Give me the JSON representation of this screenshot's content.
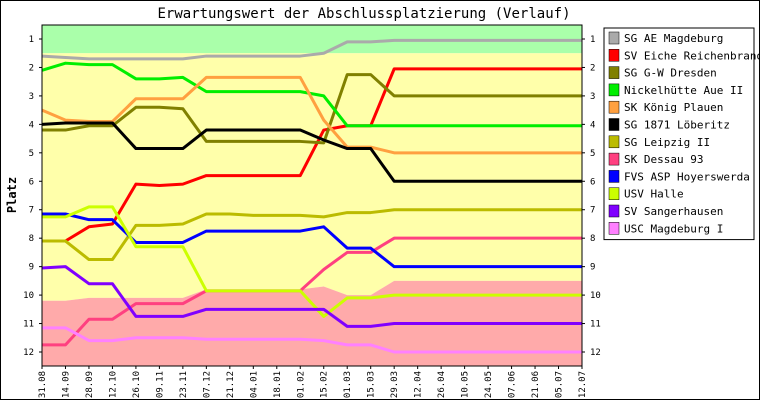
{
  "chart_data": {
    "type": "line",
    "title": "Erwartungswert der Abschlussplatzierung (Verlauf)",
    "ylabel": "Platz",
    "xlabel": "",
    "ylim": [
      1,
      12
    ],
    "y_inverted": true,
    "grid": false,
    "legend_position": "right",
    "x": [
      "31.08",
      "14.09",
      "28.09",
      "12.10",
      "26.10",
      "09.11",
      "23.11",
      "07.12",
      "21.12",
      "04.01",
      "18.01",
      "01.02",
      "15.02",
      "01.03",
      "15.03",
      "29.03",
      "12.04",
      "26.04",
      "10.05",
      "24.05",
      "07.06",
      "21.06",
      "05.07",
      "12.07"
    ],
    "y_ticks": [
      1,
      2,
      3,
      4,
      5,
      6,
      7,
      8,
      9,
      10,
      11,
      12
    ],
    "bands": [
      {
        "name": "green",
        "color": "#aaffaa",
        "from": [
          0.5,
          0.5,
          0.5,
          0.5,
          0.5,
          0.5,
          0.5,
          0.5,
          0.5,
          0.5,
          0.5,
          0.5,
          0.5,
          0.5,
          0.5,
          0.5,
          0.5,
          0.5,
          0.5,
          0.5,
          0.5,
          0.5,
          0.5,
          0.5
        ],
        "to": [
          1.5,
          1.5,
          1.5,
          1.5,
          1.5,
          1.5,
          1.5,
          1.5,
          1.5,
          1.5,
          1.5,
          1.5,
          1.5,
          1.5,
          1.5,
          1.5,
          1.5,
          1.5,
          1.5,
          1.5,
          1.5,
          1.5,
          1.5,
          1.5
        ]
      },
      {
        "name": "yellow",
        "color": "#ffffaa",
        "from": [
          1.5,
          1.5,
          1.5,
          1.5,
          1.5,
          1.5,
          1.5,
          1.5,
          1.5,
          1.5,
          1.5,
          1.5,
          1.5,
          1.5,
          1.5,
          1.5,
          1.5,
          1.5,
          1.5,
          1.5,
          1.5,
          1.5,
          1.5,
          1.5
        ],
        "to": [
          10.2,
          10.2,
          10.1,
          10.1,
          10.1,
          10.1,
          10.1,
          9.8,
          9.8,
          9.8,
          9.8,
          9.8,
          9.7,
          10.0,
          10.0,
          9.5,
          9.5,
          9.5,
          9.5,
          9.5,
          9.5,
          9.5,
          9.5,
          9.5
        ]
      },
      {
        "name": "red",
        "color": "#ffaaaa",
        "from": [
          10.2,
          10.2,
          10.1,
          10.1,
          10.1,
          10.1,
          10.1,
          9.8,
          9.8,
          9.8,
          9.8,
          9.8,
          9.7,
          10.0,
          10.0,
          9.5,
          9.5,
          9.5,
          9.5,
          9.5,
          9.5,
          9.5,
          9.5,
          9.5
        ],
        "to": [
          12.5,
          12.5,
          12.5,
          12.5,
          12.5,
          12.5,
          12.5,
          12.5,
          12.5,
          12.5,
          12.5,
          12.5,
          12.5,
          12.5,
          12.5,
          12.5,
          12.5,
          12.5,
          12.5,
          12.5,
          12.5,
          12.5,
          12.5,
          12.5
        ]
      }
    ],
    "series": [
      {
        "name": "SG AE Magdeburg",
        "color": "#aaaaaa",
        "values": [
          1.6,
          1.65,
          1.7,
          1.7,
          1.7,
          1.7,
          1.7,
          1.6,
          1.6,
          1.6,
          1.6,
          1.6,
          1.5,
          1.1,
          1.1,
          1.05,
          1.05,
          1.05,
          1.05,
          1.05,
          1.05,
          1.05,
          1.05,
          1.05
        ]
      },
      {
        "name": "SV Eiche Reichenbrand",
        "color": "#ff0000",
        "values": [
          8.1,
          8.1,
          7.6,
          7.5,
          6.1,
          6.15,
          6.1,
          5.8,
          5.8,
          5.8,
          5.8,
          5.8,
          4.2,
          4.05,
          4.05,
          2.05,
          2.05,
          2.05,
          2.05,
          2.05,
          2.05,
          2.05,
          2.05,
          2.05
        ]
      },
      {
        "name": "SG G-W Dresden",
        "color": "#808000",
        "values": [
          4.2,
          4.2,
          4.05,
          4.05,
          3.4,
          3.4,
          3.45,
          4.6,
          4.6,
          4.6,
          4.6,
          4.6,
          4.65,
          2.25,
          2.25,
          3.0,
          3.0,
          3.0,
          3.0,
          3.0,
          3.0,
          3.0,
          3.0,
          3.0
        ]
      },
      {
        "name": "Nickelhütte Aue II",
        "color": "#00ee00",
        "values": [
          2.1,
          1.85,
          1.9,
          1.9,
          2.4,
          2.4,
          2.35,
          2.85,
          2.85,
          2.85,
          2.85,
          2.85,
          3.0,
          4.05,
          4.05,
          4.05,
          4.05,
          4.05,
          4.05,
          4.05,
          4.05,
          4.05,
          4.05,
          4.05
        ]
      },
      {
        "name": "SK König Plauen",
        "color": "#ffa040",
        "values": [
          3.5,
          3.85,
          3.9,
          3.9,
          3.1,
          3.1,
          3.1,
          2.35,
          2.35,
          2.35,
          2.35,
          2.35,
          3.85,
          4.8,
          4.8,
          5.0,
          5.0,
          5.0,
          5.0,
          5.0,
          5.0,
          5.0,
          5.0,
          5.0
        ]
      },
      {
        "name": "SG 1871 Löberitz",
        "color": "#000000",
        "values": [
          4.0,
          3.95,
          3.95,
          3.95,
          4.85,
          4.85,
          4.85,
          4.2,
          4.2,
          4.2,
          4.2,
          4.2,
          4.55,
          4.85,
          4.85,
          6.0,
          6.0,
          6.0,
          6.0,
          6.0,
          6.0,
          6.0,
          6.0,
          6.0
        ]
      },
      {
        "name": "SG Leipzig II",
        "color": "#bbbb00",
        "values": [
          8.1,
          8.1,
          8.75,
          8.75,
          7.55,
          7.55,
          7.5,
          7.15,
          7.15,
          7.2,
          7.2,
          7.2,
          7.25,
          7.1,
          7.1,
          7.0,
          7.0,
          7.0,
          7.0,
          7.0,
          7.0,
          7.0,
          7.0,
          7.0
        ]
      },
      {
        "name": "SK Dessau 93",
        "color": "#ff4080",
        "values": [
          11.75,
          11.75,
          10.85,
          10.85,
          10.3,
          10.3,
          10.3,
          9.85,
          9.85,
          9.85,
          9.85,
          9.85,
          9.1,
          8.5,
          8.5,
          8.0,
          8.0,
          8.0,
          8.0,
          8.0,
          8.0,
          8.0,
          8.0,
          8.0
        ]
      },
      {
        "name": "FVS ASP Hoyerswerda",
        "color": "#0000ff",
        "values": [
          7.15,
          7.15,
          7.35,
          7.35,
          8.15,
          8.15,
          8.15,
          7.75,
          7.75,
          7.75,
          7.75,
          7.75,
          7.6,
          8.35,
          8.35,
          9.0,
          9.0,
          9.0,
          9.0,
          9.0,
          9.0,
          9.0,
          9.0,
          9.0
        ]
      },
      {
        "name": "USV Halle",
        "color": "#ccff00",
        "values": [
          7.25,
          7.25,
          6.9,
          6.9,
          8.3,
          8.3,
          8.3,
          9.85,
          9.85,
          9.85,
          9.85,
          9.85,
          10.75,
          10.1,
          10.1,
          10.0,
          10.0,
          10.0,
          10.0,
          10.0,
          10.0,
          10.0,
          10.0,
          10.0
        ]
      },
      {
        "name": "SV Sangerhausen",
        "color": "#8000ff",
        "values": [
          9.05,
          9.0,
          9.6,
          9.6,
          10.75,
          10.75,
          10.75,
          10.5,
          10.5,
          10.5,
          10.5,
          10.5,
          10.5,
          11.1,
          11.1,
          11.0,
          11.0,
          11.0,
          11.0,
          11.0,
          11.0,
          11.0,
          11.0,
          11.0
        ]
      },
      {
        "name": "USC Magdeburg I",
        "color": "#ff80ff",
        "values": [
          11.15,
          11.15,
          11.6,
          11.6,
          11.5,
          11.5,
          11.5,
          11.55,
          11.55,
          11.55,
          11.55,
          11.55,
          11.6,
          11.75,
          11.75,
          12.0,
          12.0,
          12.0,
          12.0,
          12.0,
          12.0,
          12.0,
          12.0,
          12.0
        ]
      }
    ]
  }
}
